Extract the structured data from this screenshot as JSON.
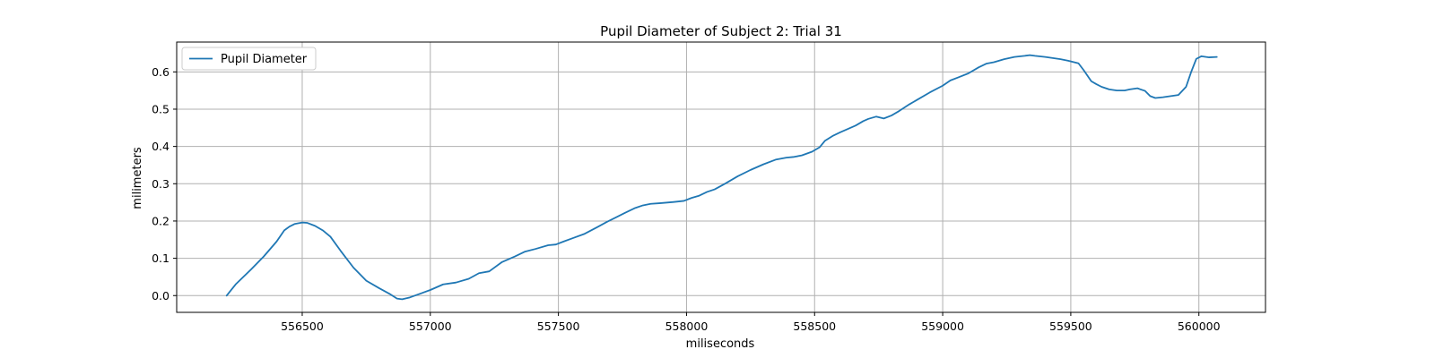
{
  "chart_data": {
    "type": "line",
    "title": "Pupil Diameter of Subject 2: Trial 31",
    "xlabel": "miliseconds",
    "ylabel": "milimeters",
    "xlim": [
      556010,
      560260
    ],
    "ylim": [
      -0.045,
      0.68
    ],
    "xticks": [
      556500,
      557000,
      557500,
      558000,
      558500,
      559000,
      559500,
      560000
    ],
    "yticks": [
      0.0,
      0.1,
      0.2,
      0.3,
      0.4,
      0.5,
      0.6
    ],
    "ytick_labels": [
      "0.0",
      "0.1",
      "0.2",
      "0.3",
      "0.4",
      "0.5",
      "0.6"
    ],
    "grid": true,
    "legend_position": "top-left",
    "line_color": "#1f77b4",
    "series": [
      {
        "name": "Pupil Diameter",
        "x": [
          556205,
          556240,
          556300,
          556350,
          556400,
          556430,
          556450,
          556470,
          556500,
          556520,
          556550,
          556580,
          556610,
          556650,
          556700,
          556750,
          556800,
          556840,
          556870,
          556890,
          556920,
          556960,
          557000,
          557050,
          557100,
          557150,
          557190,
          557230,
          557280,
          557330,
          557370,
          557410,
          557460,
          557490,
          557520,
          557560,
          557600,
          557650,
          557690,
          557720,
          557760,
          557800,
          557830,
          557860,
          557900,
          557950,
          557990,
          558020,
          558050,
          558080,
          558110,
          558150,
          558200,
          558250,
          558300,
          558350,
          558390,
          558420,
          558450,
          558490,
          558520,
          558540,
          558570,
          558600,
          558630,
          558660,
          558690,
          558710,
          558740,
          558770,
          558800,
          558830,
          558870,
          558900,
          558950,
          559000,
          559030,
          559060,
          559100,
          559140,
          559170,
          559200,
          559240,
          559280,
          559320,
          559340,
          559360,
          559400,
          559430,
          559460,
          559490,
          559530,
          559550,
          559580,
          559600,
          559620,
          559650,
          559680,
          559710,
          559730,
          559760,
          559790,
          559810,
          559830,
          559860,
          559890,
          559920,
          559950,
          559970,
          559990,
          560010,
          560040,
          560070
        ],
        "y": [
          0.0,
          0.03,
          0.07,
          0.105,
          0.145,
          0.175,
          0.185,
          0.192,
          0.196,
          0.195,
          0.187,
          0.175,
          0.158,
          0.12,
          0.075,
          0.04,
          0.02,
          0.005,
          -0.008,
          -0.01,
          -0.005,
          0.005,
          0.015,
          0.03,
          0.035,
          0.045,
          0.06,
          0.065,
          0.09,
          0.105,
          0.118,
          0.125,
          0.135,
          0.137,
          0.145,
          0.155,
          0.165,
          0.183,
          0.198,
          0.208,
          0.222,
          0.235,
          0.242,
          0.246,
          0.248,
          0.251,
          0.254,
          0.262,
          0.268,
          0.278,
          0.285,
          0.3,
          0.32,
          0.337,
          0.352,
          0.365,
          0.37,
          0.372,
          0.376,
          0.386,
          0.398,
          0.415,
          0.428,
          0.438,
          0.447,
          0.456,
          0.468,
          0.474,
          0.48,
          0.475,
          0.483,
          0.495,
          0.513,
          0.525,
          0.545,
          0.563,
          0.577,
          0.585,
          0.596,
          0.612,
          0.622,
          0.626,
          0.634,
          0.64,
          0.643,
          0.645,
          0.643,
          0.64,
          0.637,
          0.634,
          0.63,
          0.623,
          0.605,
          0.575,
          0.567,
          0.56,
          0.553,
          0.55,
          0.55,
          0.553,
          0.556,
          0.549,
          0.535,
          0.53,
          0.532,
          0.535,
          0.538,
          0.56,
          0.6,
          0.635,
          0.642,
          0.639,
          0.64
        ]
      }
    ]
  }
}
